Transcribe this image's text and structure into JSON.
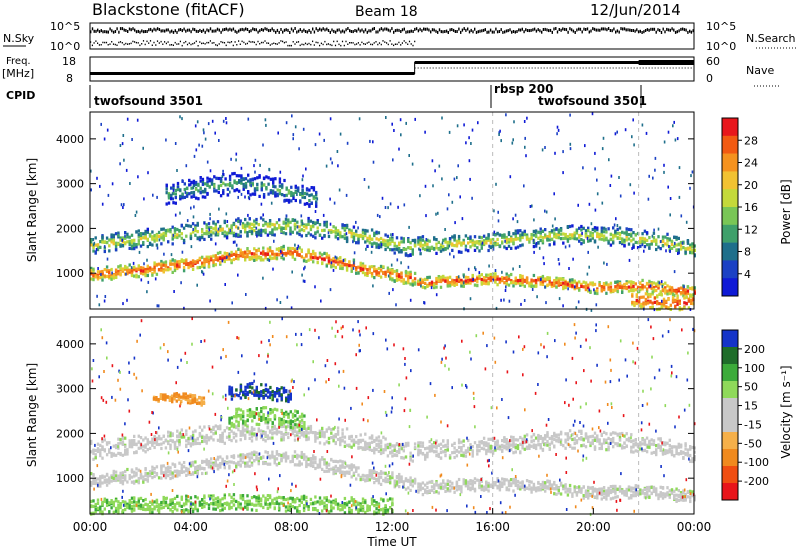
{
  "header": {
    "station": "Blackstone (fitACF)",
    "beam": "Beam 18",
    "date": "12/Jun/2014"
  },
  "top_panels": {
    "nsky_label": "N.Sky",
    "nsky_ticks": [
      "10^5",
      "10^0"
    ],
    "nsearch_label": "N.Search",
    "nsearch_ticks": [
      "10^5",
      "10^0"
    ],
    "freq_label_top": "Freq.",
    "freq_label_bottom": "[MHz]",
    "freq_ticks": [
      "18",
      "8"
    ],
    "nave_label": "Nave",
    "nave_ticks": [
      "60",
      "0"
    ],
    "cpid_label": "CPID",
    "cpid_segments": [
      {
        "label": "twofsound 3501",
        "start_hour": 0,
        "end_hour": 16
      },
      {
        "label": "rbsp 200",
        "start_hour": 16,
        "end_hour": 22
      },
      {
        "label": "twofsound 3501",
        "start_hour": 18,
        "end_hour": 22
      }
    ]
  },
  "colorbars": {
    "power": {
      "title": "Power [dB]",
      "tick_labels": [
        "28",
        "24",
        "20",
        "16",
        "12",
        "8",
        "4"
      ],
      "colors": [
        "#e8171c",
        "#f25a12",
        "#f5921f",
        "#f2c232",
        "#c4d93a",
        "#79c656",
        "#3fa06b",
        "#1f6f8b",
        "#1b41c4",
        "#0f1ad6"
      ]
    },
    "velocity": {
      "title": "Velocity [m s⁻¹]",
      "tick_labels": [
        "200",
        "100",
        "50",
        "15",
        "-15",
        "-50",
        "-100",
        "-200"
      ],
      "colors": [
        "#1534c9",
        "#1f6d2a",
        "#3cab3a",
        "#8fd95a",
        "#c8c8c8",
        "#c8c8c8",
        "#f5b04a",
        "#f08a1e",
        "#f04e11",
        "#e8141a"
      ]
    }
  },
  "x_axis": {
    "label": "Time UT",
    "tick_labels": [
      "00:00",
      "04:00",
      "08:00",
      "12:00",
      "16:00",
      "20:00",
      "00:00"
    ]
  },
  "chart_data": [
    {
      "type": "heatmap",
      "title": "Power",
      "ylabel": "Slant Range [km]",
      "yticks": [
        1000,
        2000,
        3000,
        4000
      ],
      "ylim": [
        200,
        4600
      ],
      "xlim_hours": [
        0,
        24
      ],
      "bands": [
        {
          "x": [
            0,
            2,
            4,
            6,
            8,
            10,
            11,
            12.9
          ],
          "y": [
            1000,
            1100,
            1250,
            1450,
            1500,
            1250,
            1100,
            900
          ],
          "thickness": 180,
          "level": "high"
        },
        {
          "x": [
            0,
            2,
            4,
            6,
            8,
            10,
            12,
            12.9
          ],
          "y": [
            1650,
            1800,
            1950,
            2050,
            2100,
            1950,
            1700,
            1600
          ],
          "thickness": 260,
          "level": "medium"
        },
        {
          "x": [
            13,
            14,
            16,
            18,
            20,
            22,
            24
          ],
          "y": [
            800,
            850,
            900,
            850,
            700,
            750,
            600
          ],
          "thickness": 160,
          "level": "high"
        },
        {
          "x": [
            13,
            15,
            17,
            19,
            21,
            23,
            24
          ],
          "y": [
            1650,
            1700,
            1800,
            1900,
            1850,
            1700,
            1550
          ],
          "thickness": 250,
          "level": "medium"
        },
        {
          "x": [
            3,
            4.5,
            6,
            7.5,
            9
          ],
          "y": [
            2800,
            2950,
            3050,
            2900,
            2700
          ],
          "thickness": 300,
          "level": "low"
        },
        {
          "x": [
            21.5,
            22.5,
            23.5,
            24
          ],
          "y": [
            450,
            400,
            350,
            420
          ],
          "thickness": 260,
          "level": "high"
        }
      ]
    },
    {
      "type": "heatmap",
      "title": "Velocity",
      "ylabel": "Slant Range [km]",
      "yticks": [
        1000,
        2000,
        3000,
        4000
      ],
      "ylim": [
        200,
        4600
      ],
      "xlim_hours": [
        0,
        24
      ],
      "bands": [
        {
          "x": [
            0,
            2,
            4,
            6,
            8,
            10,
            11,
            12.9
          ],
          "y": [
            1000,
            1100,
            1250,
            1450,
            1500,
            1250,
            1100,
            900
          ],
          "thickness": 200,
          "kind": "ground"
        },
        {
          "x": [
            0,
            2,
            4,
            6,
            8,
            10,
            12,
            12.9
          ],
          "y": [
            1650,
            1800,
            1950,
            2050,
            2100,
            1950,
            1700,
            1600
          ],
          "thickness": 260,
          "kind": "ground"
        },
        {
          "x": [
            13,
            14,
            16,
            18,
            20,
            22,
            24
          ],
          "y": [
            800,
            850,
            900,
            850,
            700,
            750,
            600
          ],
          "thickness": 180,
          "kind": "ground"
        },
        {
          "x": [
            13,
            15,
            17,
            19,
            21,
            23,
            24
          ],
          "y": [
            1650,
            1700,
            1800,
            1900,
            1850,
            1700,
            1550
          ],
          "thickness": 250,
          "kind": "ground"
        },
        {
          "x": [
            5.5,
            6.5,
            7.5,
            8.5
          ],
          "y": [
            2350,
            2450,
            2400,
            2300
          ],
          "thickness": 260,
          "kind": "green"
        },
        {
          "x": [
            5.5,
            6.3,
            7.2,
            8.0
          ],
          "y": [
            2950,
            3000,
            2950,
            2850
          ],
          "thickness": 200,
          "kind": "blue"
        },
        {
          "x": [
            2.5,
            3.5,
            4.5
          ],
          "y": [
            2800,
            2850,
            2750
          ],
          "thickness": 120,
          "kind": "orange"
        },
        {
          "x": [
            0,
            3,
            6,
            9,
            12
          ],
          "y": [
            400,
            450,
            500,
            450,
            400
          ],
          "thickness": 220,
          "kind": "green"
        }
      ]
    }
  ]
}
